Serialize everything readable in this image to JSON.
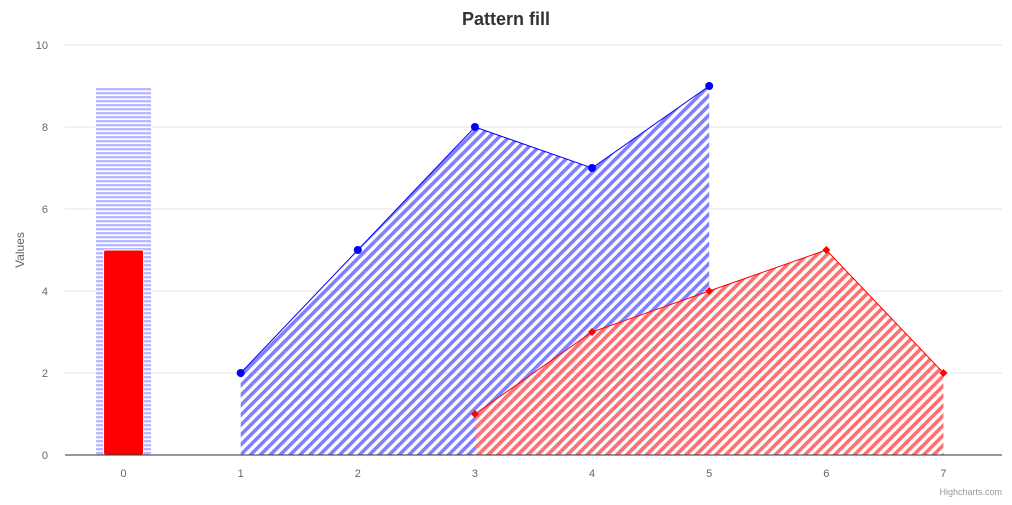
{
  "chart_data": {
    "title": "Pattern fill",
    "ylabel": "Values",
    "xlabel": "",
    "ylim": [
      0,
      10
    ],
    "y_ticks": [
      0,
      2,
      4,
      6,
      8,
      10
    ],
    "x_ticks": [
      0,
      1,
      2,
      3,
      4,
      5,
      6,
      7
    ],
    "grid": "horizontal",
    "credits": "Highcharts.com",
    "series": [
      {
        "type": "column",
        "points": [
          {
            "x": 0,
            "y": 9
          }
        ],
        "color": "#b8b8ff",
        "pattern": "horizontal-lines"
      },
      {
        "type": "column",
        "points": [
          {
            "x": 0,
            "y": 5
          }
        ],
        "color": "#ff0000",
        "pattern": "solid"
      },
      {
        "type": "area",
        "points": [
          {
            "x": 1,
            "y": 2
          },
          {
            "x": 2,
            "y": 5
          },
          {
            "x": 3,
            "y": 8
          },
          {
            "x": 4,
            "y": 7
          },
          {
            "x": 5,
            "y": 9
          }
        ],
        "color": "#0000ff",
        "pattern": "diagonal-lines",
        "marker": "circle"
      },
      {
        "type": "area",
        "points": [
          {
            "x": 3,
            "y": 1
          },
          {
            "x": 4,
            "y": 3
          },
          {
            "x": 5,
            "y": 4
          },
          {
            "x": 6,
            "y": 5
          },
          {
            "x": 7,
            "y": 2
          }
        ],
        "color": "#ff0000",
        "pattern": "diagonal-lines",
        "marker": "diamond"
      }
    ]
  }
}
